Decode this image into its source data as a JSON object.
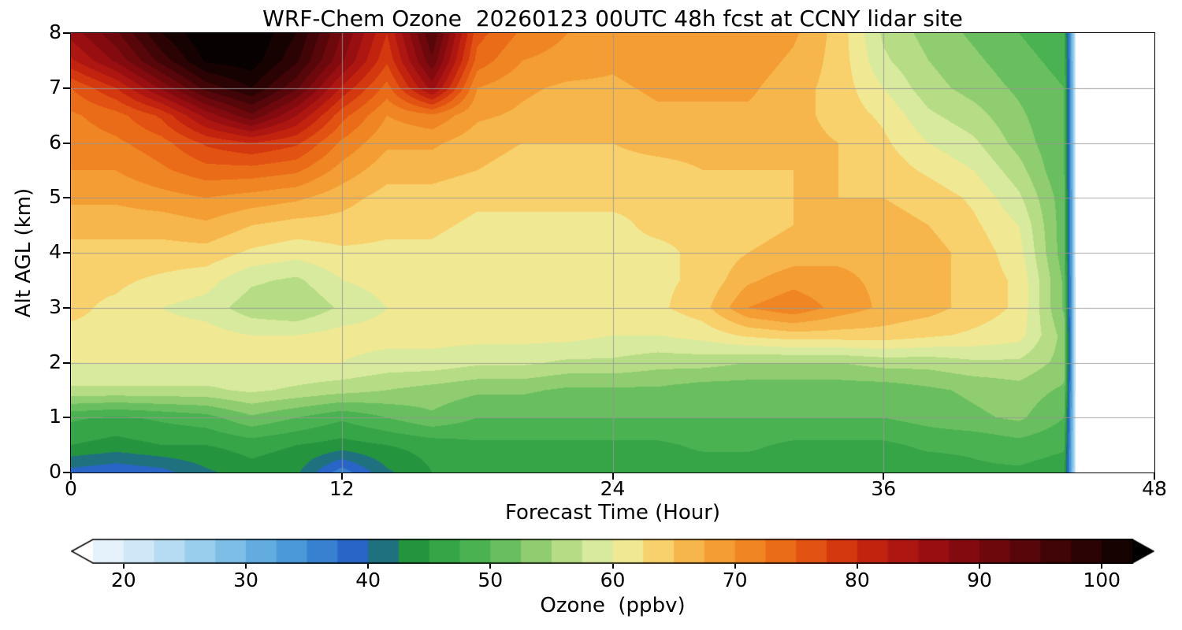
{
  "chart_data": {
    "type": "heatmap",
    "title": "WRF-Chem Ozone  20260123 00UTC 48h fcst at CCNY lidar site",
    "xlabel": "Forecast Time (Hour)",
    "ylabel": "Alt AGL (km)",
    "xlim": [
      0,
      48
    ],
    "ylim": [
      0,
      8
    ],
    "xticks": [
      0,
      12,
      24,
      36,
      48
    ],
    "yticks": [
      0,
      1,
      2,
      3,
      4,
      5,
      6,
      7,
      8
    ],
    "grid": true,
    "grid_color": "#9a9a9a",
    "background": "#ffffff",
    "data_end_hour": 44.5,
    "hours": [
      0,
      2,
      4,
      6,
      8,
      10,
      12,
      14,
      16,
      18,
      20,
      22,
      24,
      26,
      28,
      30,
      32,
      34,
      36,
      38,
      40,
      42,
      44,
      44.5
    ],
    "altitudes_km": [
      0,
      0.5,
      1,
      1.5,
      2,
      2.5,
      3,
      3.5,
      4,
      4.5,
      5,
      5.5,
      6,
      6.5,
      7,
      7.5,
      8
    ],
    "values_ppbv": [
      [
        39,
        38,
        39,
        42,
        44,
        43,
        36,
        42,
        45,
        46,
        46,
        46,
        46,
        46,
        46,
        46,
        46,
        46,
        46,
        46,
        47,
        47,
        46,
        22
      ],
      [
        45,
        44,
        45,
        45,
        46,
        45,
        44,
        45,
        46,
        47,
        47,
        47,
        47,
        47,
        48,
        48,
        47,
        47,
        47,
        48,
        48,
        49,
        48,
        22
      ],
      [
        48,
        47,
        48,
        49,
        52,
        50,
        48,
        50,
        52,
        50,
        50,
        50,
        50,
        50,
        50,
        50,
        50,
        50,
        50,
        51,
        52,
        53,
        50,
        22
      ],
      [
        57,
        57,
        57,
        57,
        58,
        57,
        56,
        55,
        54,
        53,
        53,
        52,
        52,
        52,
        51,
        51,
        51,
        51,
        51,
        52,
        53,
        54,
        52,
        22
      ],
      [
        60,
        60,
        60,
        60,
        60,
        60,
        60,
        59,
        59,
        58,
        58,
        57,
        57,
        56,
        56,
        55,
        55,
        55,
        56,
        56,
        57,
        57,
        54,
        22
      ],
      [
        62,
        62,
        61,
        61,
        60,
        60,
        61,
        61,
        61,
        61,
        61,
        61,
        60,
        60,
        61,
        63,
        64,
        64,
        64,
        63,
        62,
        61,
        54,
        22
      ],
      [
        63,
        62,
        60,
        59,
        56,
        55,
        58,
        60,
        61,
        61,
        61,
        61,
        61,
        62,
        64,
        70,
        72,
        69,
        67,
        66,
        64,
        62,
        52,
        22
      ],
      [
        63,
        63,
        62,
        61,
        58,
        57,
        60,
        61,
        61,
        61,
        61,
        61,
        61,
        62,
        63,
        67,
        69,
        68,
        67,
        66,
        64,
        62,
        52,
        22
      ],
      [
        64,
        64,
        64,
        64,
        62,
        61,
        62,
        62,
        62,
        61,
        61,
        61,
        62,
        62,
        63,
        65,
        66,
        67,
        67,
        66,
        64,
        61,
        51,
        22
      ],
      [
        66,
        66,
        66,
        67,
        65,
        64,
        64,
        63,
        63,
        62,
        62,
        62,
        62,
        63,
        63,
        64,
        65,
        66,
        66,
        65,
        63,
        60,
        51,
        22
      ],
      [
        68,
        68,
        69,
        70,
        69,
        68,
        66,
        64,
        64,
        63,
        63,
        63,
        63,
        63,
        64,
        64,
        65,
        65,
        65,
        64,
        62,
        58,
        51,
        22
      ],
      [
        70,
        70,
        72,
        74,
        74,
        73,
        69,
        66,
        66,
        65,
        64,
        64,
        64,
        64,
        65,
        65,
        65,
        65,
        64,
        62,
        60,
        56,
        50,
        22
      ],
      [
        71,
        72,
        74,
        78,
        80,
        78,
        72,
        68,
        68,
        66,
        65,
        65,
        65,
        66,
        66,
        66,
        66,
        65,
        63,
        60,
        58,
        54,
        50,
        22
      ],
      [
        72,
        74,
        78,
        86,
        92,
        85,
        76,
        70,
        72,
        68,
        67,
        66,
        66,
        67,
        67,
        67,
        66,
        64,
        62,
        58,
        56,
        53,
        50,
        22
      ],
      [
        75,
        80,
        88,
        96,
        100,
        93,
        82,
        74,
        86,
        70,
        68,
        67,
        67,
        68,
        68,
        68,
        66,
        64,
        60,
        56,
        54,
        52,
        50,
        22
      ],
      [
        82,
        88,
        96,
        103,
        104,
        98,
        88,
        78,
        92,
        74,
        70,
        69,
        68,
        69,
        69,
        69,
        67,
        64,
        58,
        55,
        53,
        51,
        49,
        22
      ],
      [
        86,
        92,
        100,
        105,
        105,
        100,
        90,
        80,
        95,
        76,
        72,
        70,
        69,
        70,
        70,
        70,
        68,
        64,
        57,
        54,
        52,
        50,
        48,
        22
      ]
    ],
    "colorbar": {
      "label": "Ozone  (ppbv)",
      "ticks": [
        20,
        30,
        40,
        50,
        60,
        70,
        80,
        90,
        100
      ],
      "min": 17.5,
      "max": 102.5,
      "contour_interval": 2.5,
      "extend": "both",
      "under_color": "#ffffff",
      "over_color": "#000000",
      "colormap_stops": [
        [
          15,
          "#ffffff"
        ],
        [
          20,
          "#dceef9"
        ],
        [
          25,
          "#a8d6f0"
        ],
        [
          30,
          "#6fb6e4"
        ],
        [
          35,
          "#3f8fd4"
        ],
        [
          40,
          "#2057c2"
        ],
        [
          42.5,
          "#1e8a3c"
        ],
        [
          45,
          "#2a9e42"
        ],
        [
          50,
          "#55b856"
        ],
        [
          52.5,
          "#7cc668"
        ],
        [
          55,
          "#a3d478"
        ],
        [
          57.5,
          "#c8e391"
        ],
        [
          60,
          "#e8f0a8"
        ],
        [
          62.5,
          "#f7df7e"
        ],
        [
          65,
          "#f8c35a"
        ],
        [
          67.5,
          "#f6a83c"
        ],
        [
          70,
          "#f2922a"
        ],
        [
          72.5,
          "#ee781c"
        ],
        [
          75,
          "#e75f13"
        ],
        [
          77.5,
          "#dc4410"
        ],
        [
          80,
          "#cb2b0e"
        ],
        [
          82.5,
          "#b81b10"
        ],
        [
          85,
          "#a31212"
        ],
        [
          87.5,
          "#8e0c10"
        ],
        [
          90,
          "#780a0e"
        ],
        [
          92.5,
          "#62070b"
        ],
        [
          95,
          "#4c0508"
        ],
        [
          97.5,
          "#360305"
        ],
        [
          100,
          "#200203"
        ],
        [
          102.5,
          "#0d0101"
        ],
        [
          105,
          "#000000"
        ]
      ]
    }
  }
}
